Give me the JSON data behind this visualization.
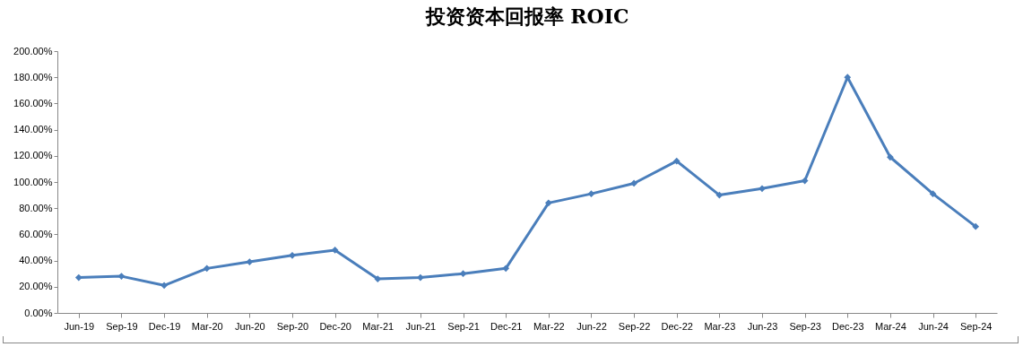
{
  "chart_data": {
    "type": "line",
    "title": "投资资本回报率 ROIC",
    "categories": [
      "Jun-19",
      "Sep-19",
      "Dec-19",
      "Mar-20",
      "Jun-20",
      "Sep-20",
      "Dec-20",
      "Mar-21",
      "Jun-21",
      "Sep-21",
      "Dec-21",
      "Mar-22",
      "Jun-22",
      "Sep-22",
      "Dec-22",
      "Mar-23",
      "Jun-23",
      "Sep-23",
      "Dec-23",
      "Mar-24",
      "Jun-24",
      "Sep-24"
    ],
    "series": [
      {
        "color": "#4a7ebb",
        "values": [
          27,
          28,
          21,
          34,
          39,
          44,
          48,
          26,
          27,
          30,
          34,
          84,
          91,
          99,
          116,
          90,
          95,
          101,
          180,
          119,
          91,
          66
        ]
      }
    ],
    "ylim": [
      0,
      200
    ],
    "yticks": [
      {
        "value": 0,
        "label": "0.00%"
      },
      {
        "value": 20,
        "label": "20.00%"
      },
      {
        "value": 40,
        "label": "40.00%"
      },
      {
        "value": 60,
        "label": "60.00%"
      },
      {
        "value": 80,
        "label": "80.00%"
      },
      {
        "value": 100,
        "label": "100.00%"
      },
      {
        "value": 120,
        "label": "120.00%"
      },
      {
        "value": 140,
        "label": "140.00%"
      },
      {
        "value": 160,
        "label": "160.00%"
      },
      {
        "value": 180,
        "label": "180.00%"
      },
      {
        "value": 200,
        "label": "200.00%"
      }
    ],
    "grid": false,
    "marker": "diamond",
    "line_style": "solid"
  }
}
